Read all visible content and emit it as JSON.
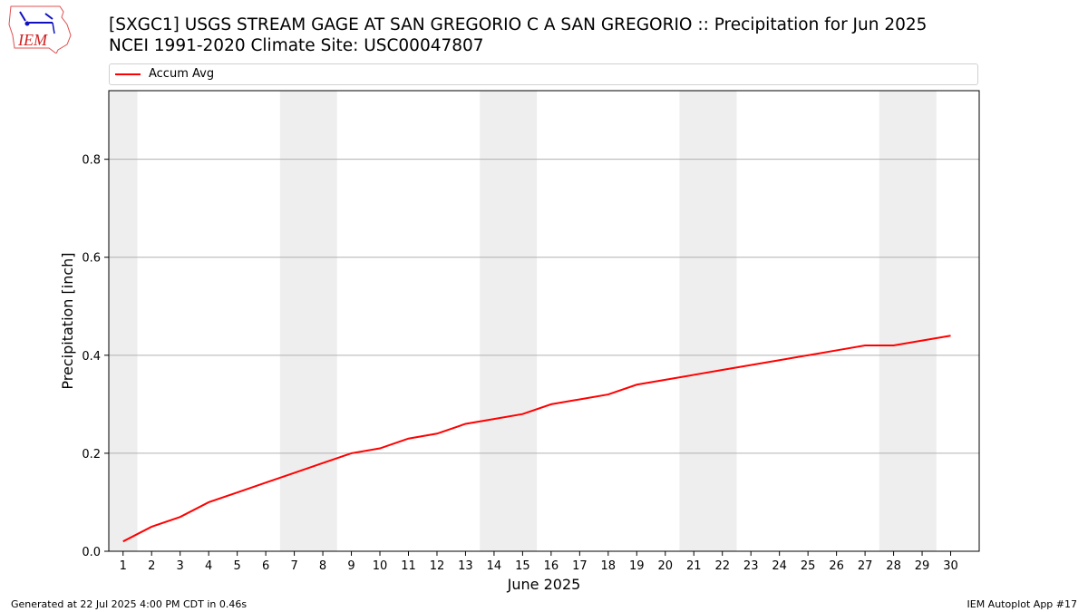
{
  "header": {
    "title_line1": "[SXGC1] USGS STREAM GAGE  AT SAN GREGORIO C A SAN GREGORIO :: Precipitation for Jun 2025",
    "title_line2": "NCEI 1991-2020 Climate Site: USC00047807",
    "logo_text": "IEM"
  },
  "footer": {
    "generated": "Generated at 22 Jul 2025 4:00 PM CDT in 0.46s",
    "app": "IEM Autoplot App #17"
  },
  "chart_data": {
    "type": "line",
    "xlabel": "June 2025",
    "ylabel": "Precipitation [inch]",
    "x": [
      1,
      2,
      3,
      4,
      5,
      6,
      7,
      8,
      9,
      10,
      11,
      12,
      13,
      14,
      15,
      16,
      17,
      18,
      19,
      20,
      21,
      22,
      23,
      24,
      25,
      26,
      27,
      28,
      29,
      30
    ],
    "x_tick_labels": [
      "1",
      "2",
      "3",
      "4",
      "5",
      "6",
      "7",
      "8",
      "9",
      "10",
      "11",
      "12",
      "13",
      "14",
      "15",
      "16",
      "17",
      "18",
      "19",
      "20",
      "21",
      "22",
      "23",
      "24",
      "25",
      "26",
      "27",
      "28",
      "29",
      "30"
    ],
    "xlim": [
      0.5,
      31.0
    ],
    "ylim": [
      0,
      0.94
    ],
    "y_ticks": [
      0.0,
      0.2,
      0.4,
      0.6,
      0.8
    ],
    "y_tick_labels": [
      "0.0",
      "0.2",
      "0.4",
      "0.6",
      "0.8"
    ],
    "grid": "horizontal",
    "legend_position": "top, above plot",
    "weekend_shading": [
      [
        0.5,
        1.5
      ],
      [
        6.5,
        8.5
      ],
      [
        13.5,
        15.5
      ],
      [
        20.5,
        22.5
      ],
      [
        27.5,
        29.5
      ]
    ],
    "series": [
      {
        "name": "Accum Avg",
        "color": "#ff0000",
        "values": [
          0.02,
          0.05,
          0.07,
          0.1,
          0.12,
          0.14,
          0.16,
          0.18,
          0.2,
          0.21,
          0.23,
          0.24,
          0.26,
          0.27,
          0.28,
          0.3,
          0.31,
          0.32,
          0.34,
          0.35,
          0.36,
          0.37,
          0.38,
          0.39,
          0.4,
          0.41,
          0.42,
          0.42,
          0.43,
          0.44
        ]
      }
    ]
  },
  "colors": {
    "series": "#ff0000",
    "shade": "#eeeeee",
    "grid": "#b0b0b0"
  }
}
